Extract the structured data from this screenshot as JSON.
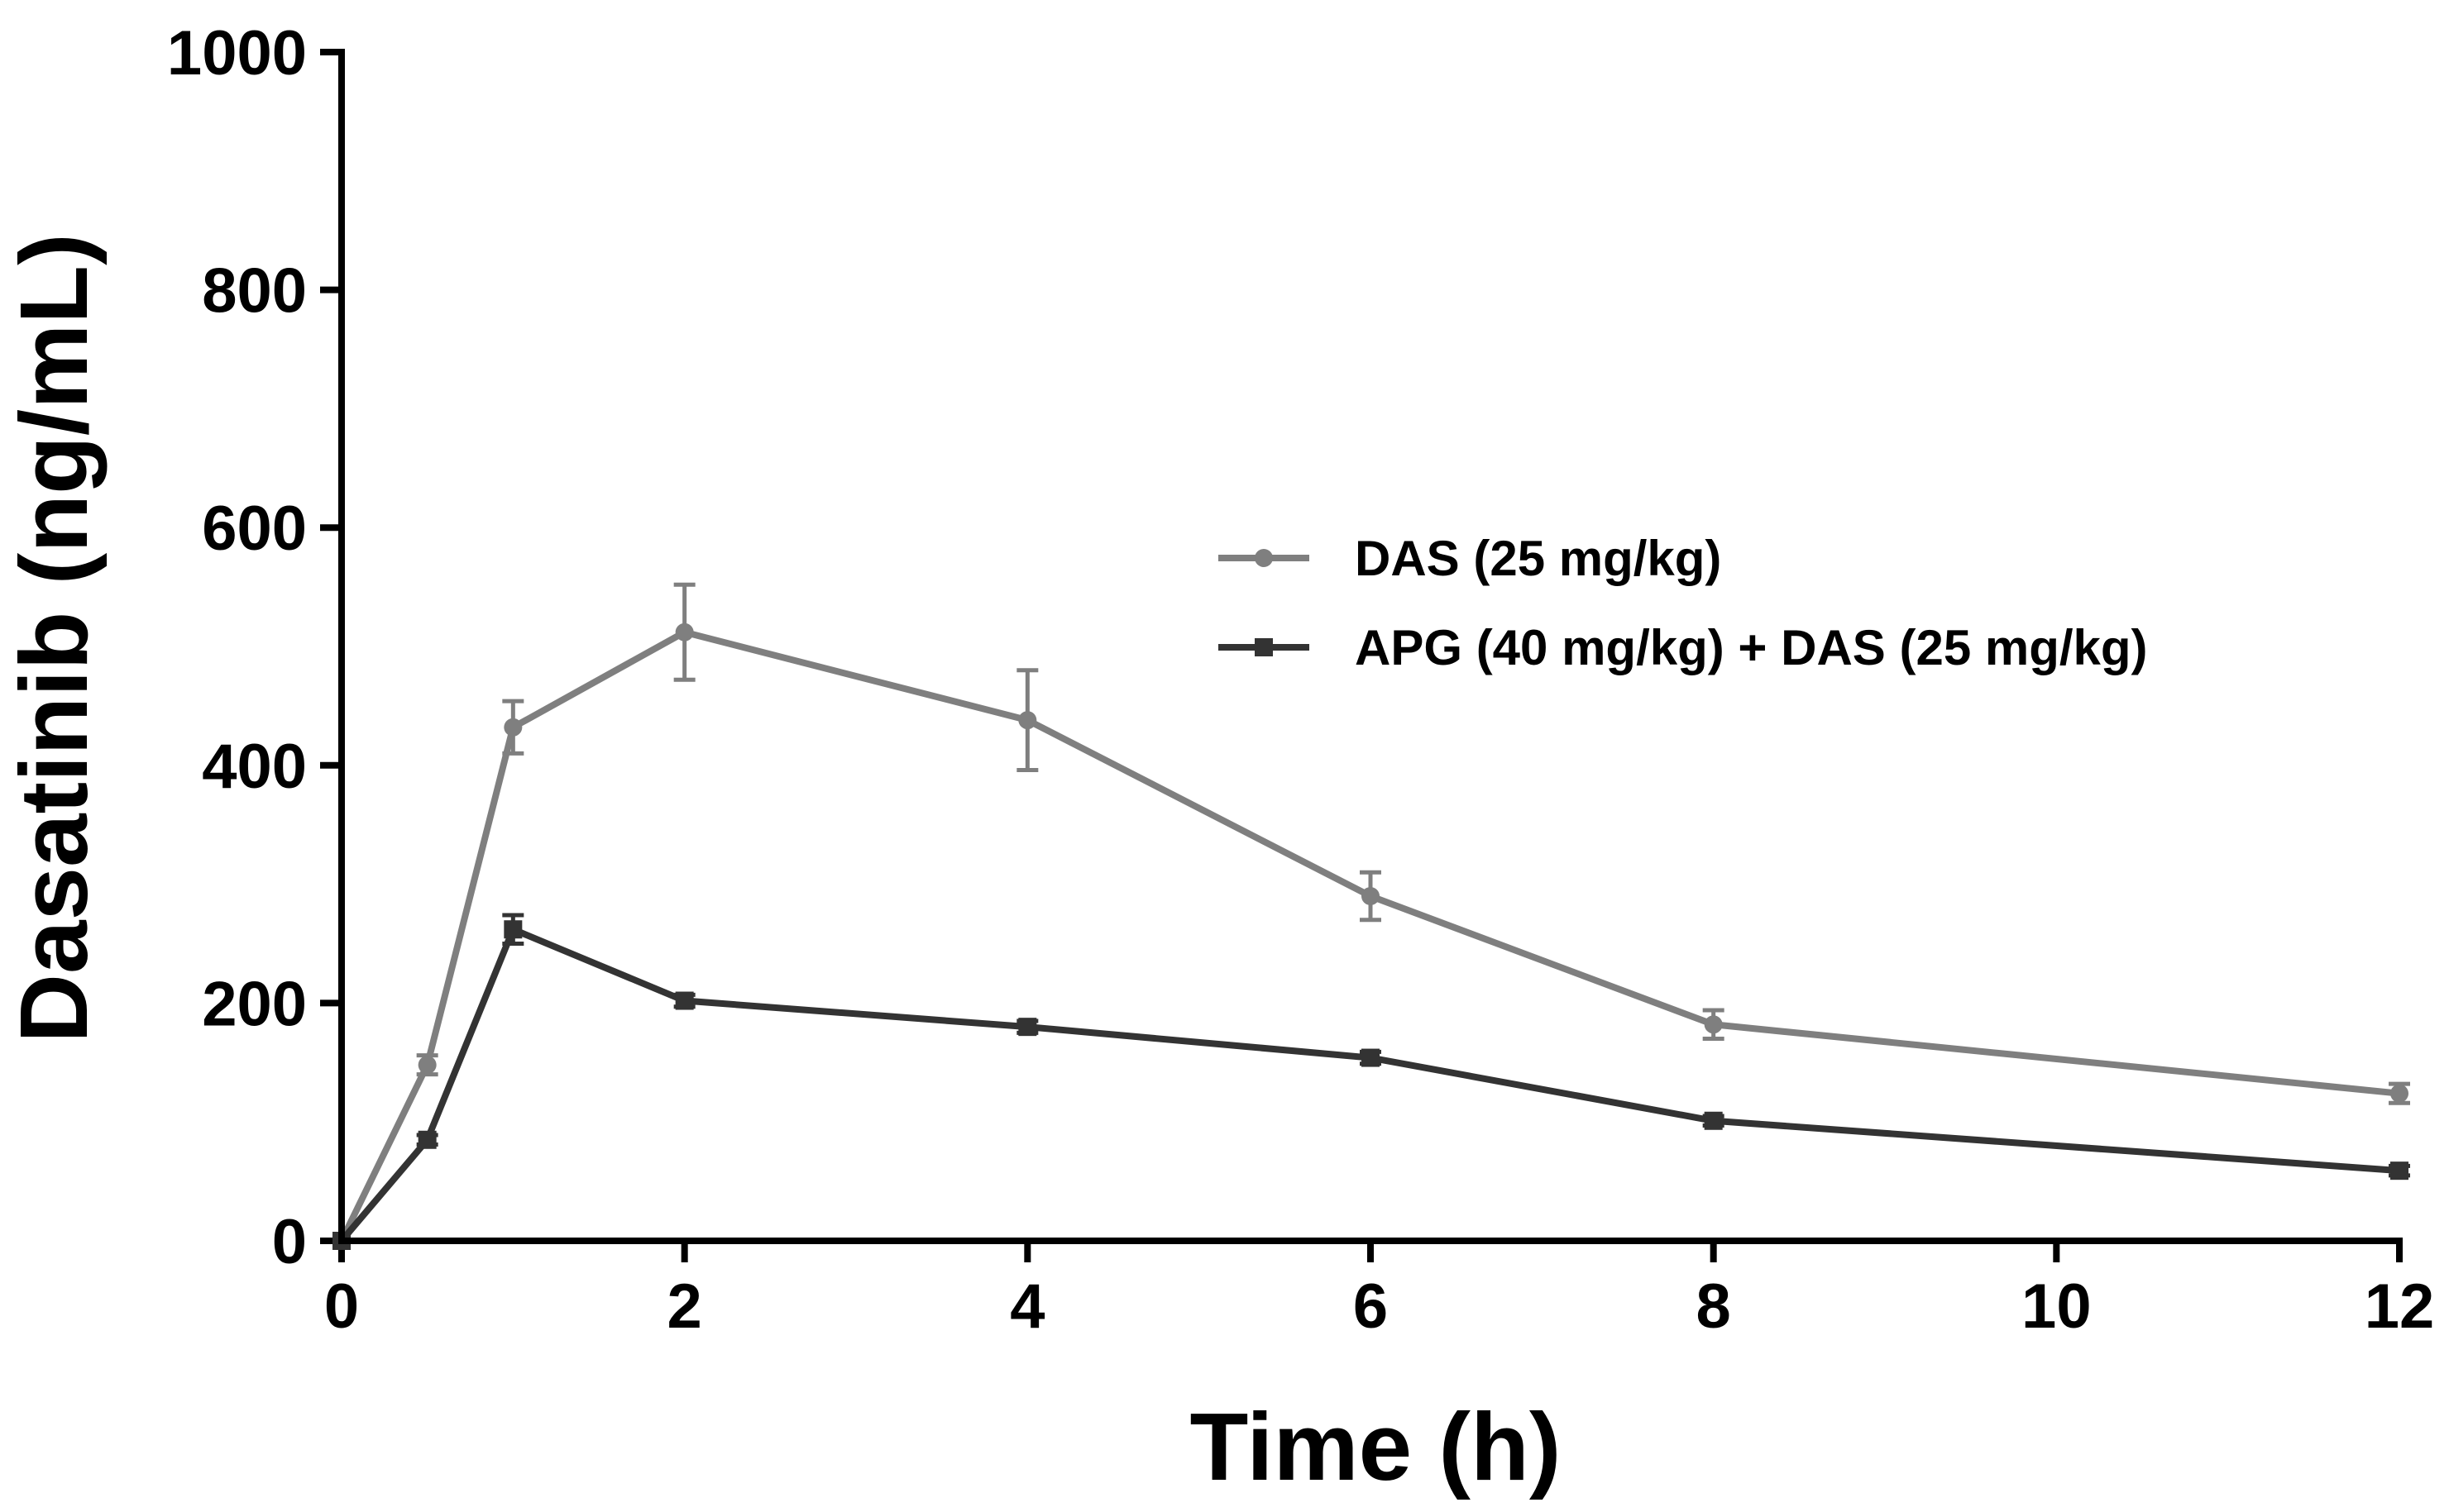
{
  "chart_data": {
    "type": "line",
    "title": "",
    "xlabel": "Time (h)",
    "ylabel": "Dasatinib (ng/mL)",
    "xlim": [
      0,
      12
    ],
    "ylim": [
      0,
      1000
    ],
    "x_ticks": [
      "0",
      "2",
      "4",
      "6",
      "8",
      "10",
      "12"
    ],
    "y_ticks": [
      "0",
      "200",
      "400",
      "600",
      "800",
      "1000"
    ],
    "legend_position": "center-right",
    "series": [
      {
        "name": "DAS (25 mg/kg)",
        "marker": "circle",
        "color": "#7f7f7f",
        "x": [
          0,
          0.5,
          1,
          2,
          4,
          6,
          8,
          12
        ],
        "values": [
          0,
          148,
          432,
          512,
          438,
          290,
          182,
          124
        ],
        "error": [
          0,
          8,
          22,
          40,
          42,
          20,
          12,
          8
        ]
      },
      {
        "name": "APG (40 mg/kg) + DAS (25 mg/kg)",
        "marker": "square",
        "color": "#333333",
        "x": [
          0,
          0.5,
          1,
          2,
          4,
          6,
          8,
          12
        ],
        "values": [
          0,
          85,
          262,
          202,
          180,
          154,
          101,
          59
        ],
        "error": [
          0,
          4,
          12,
          5,
          5,
          5,
          4,
          4
        ]
      }
    ]
  }
}
